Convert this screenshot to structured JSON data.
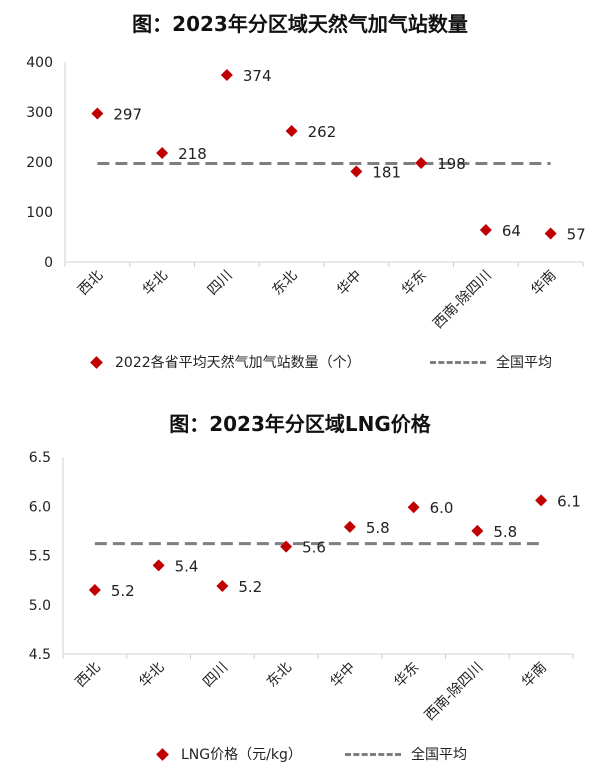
{
  "chart_data": [
    {
      "type": "scatter",
      "title": "图：2023年分区域天然气加气站数量",
      "categories": [
        "西北",
        "华北",
        "四川",
        "东北",
        "华中",
        "华东",
        "西南-除四川",
        "华南"
      ],
      "series": [
        {
          "name": "2022各省平均天然气加气站数量（个）",
          "values": [
            297,
            218,
            374,
            262,
            181,
            198,
            64,
            57
          ],
          "color": "#c00000"
        },
        {
          "name": "全国平均",
          "values": [
            197,
            197,
            197,
            197,
            197,
            197,
            197,
            197
          ],
          "color": "#7f7f7f",
          "style": "dashed"
        }
      ],
      "yticks": [
        "0",
        "100",
        "200",
        "300",
        "400"
      ],
      "ylim": [
        0,
        400
      ],
      "data_labels": [
        "297",
        "218",
        "374",
        "262",
        "181",
        "198",
        "64",
        "57"
      ],
      "grid": false,
      "legend_position": "bottom"
    },
    {
      "type": "scatter",
      "title": "图：2023年分区域LNG价格",
      "categories": [
        "西北",
        "华北",
        "四川",
        "东北",
        "华中",
        "华东",
        "西南-除四川",
        "华南"
      ],
      "series": [
        {
          "name": "LNG价格（元/kg）",
          "values": [
            5.15,
            5.4,
            5.19,
            5.59,
            5.79,
            5.99,
            5.75,
            6.06
          ],
          "color": "#c00000"
        },
        {
          "name": "全国平均",
          "values": [
            5.62,
            5.62,
            5.62,
            5.62,
            5.62,
            5.62,
            5.62,
            5.62
          ],
          "color": "#7f7f7f",
          "style": "dashed"
        }
      ],
      "yticks": [
        "4.5",
        "5.0",
        "5.5",
        "6.0",
        "6.5"
      ],
      "ylim": [
        4.5,
        6.5
      ],
      "data_labels": [
        "5.2",
        "5.4",
        "5.2",
        "5.6",
        "5.8",
        "6.0",
        "5.8",
        "6.1"
      ],
      "grid": false,
      "legend_position": "bottom"
    }
  ]
}
